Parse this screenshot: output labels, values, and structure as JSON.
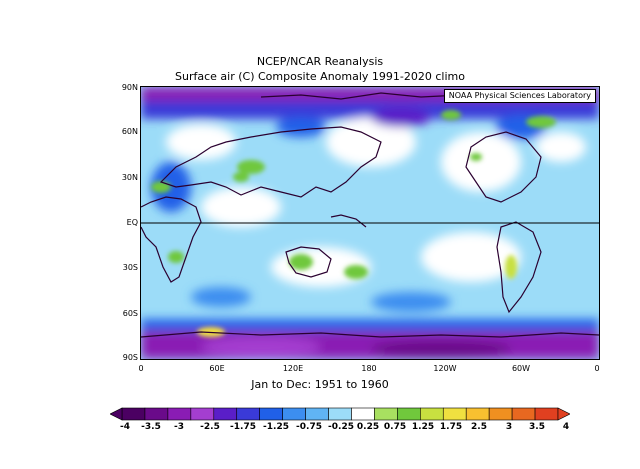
{
  "title_line1": "NCEP/NCAR Reanalysis",
  "title_line2": "Surface air (C) Composite Anomaly 1991-2020 climo",
  "credit": "NOAA Physical Sciences Laboratory",
  "period_label": "Jan to Dec: 1951 to 1960",
  "lat_labels": [
    "90N",
    "60N",
    "30N",
    "EQ",
    "30S",
    "60S",
    "90S"
  ],
  "lon_labels": [
    "0",
    "60E",
    "120E",
    "180",
    "120W",
    "60W",
    "0"
  ],
  "colorbar": {
    "labels": [
      "-4",
      "-3.5",
      "-3",
      "-2.5",
      "-1.75",
      "-1.25",
      "-0.75",
      "-0.25",
      "0.25",
      "0.75",
      "1.25",
      "1.75",
      "2.5",
      "3",
      "3.5",
      "4"
    ],
    "colors": [
      "#4b0062",
      "#6a0a8a",
      "#8a1cb4",
      "#a43ed0",
      "#5a1ec8",
      "#3a3ad8",
      "#2060e8",
      "#3c8ef0",
      "#60b4f4",
      "#9cdcf8",
      "#ffffff",
      "#a8e060",
      "#70c83c",
      "#c8e040",
      "#f0e040",
      "#f8c030",
      "#f09020",
      "#e86820",
      "#e04020"
    ]
  }
}
